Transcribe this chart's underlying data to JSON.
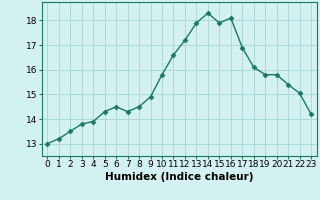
{
  "x": [
    0,
    1,
    2,
    3,
    4,
    5,
    6,
    7,
    8,
    9,
    10,
    11,
    12,
    13,
    14,
    15,
    16,
    17,
    18,
    19,
    20,
    21,
    22,
    23
  ],
  "y": [
    13.0,
    13.2,
    13.5,
    13.8,
    13.9,
    14.3,
    14.5,
    14.3,
    14.5,
    14.9,
    15.8,
    16.6,
    17.2,
    17.9,
    18.3,
    17.9,
    18.1,
    16.9,
    16.1,
    15.8,
    15.8,
    15.4,
    15.05,
    14.2
  ],
  "line_color": "#1a7a5e",
  "marker": "D",
  "marker_size": 2.5,
  "bg_color": "#d4f1f1",
  "grid_color": "#aed8d8",
  "xlabel": "Humidex (Indice chaleur)",
  "xlim": [
    -0.5,
    23.5
  ],
  "ylim": [
    12.5,
    18.75
  ],
  "yticks": [
    13,
    14,
    15,
    16,
    17,
    18
  ],
  "xticks": [
    0,
    1,
    2,
    3,
    4,
    5,
    6,
    7,
    8,
    9,
    10,
    11,
    12,
    13,
    14,
    15,
    16,
    17,
    18,
    19,
    20,
    21,
    22,
    23
  ],
  "xtick_labels": [
    "0",
    "1",
    "2",
    "3",
    "4",
    "5",
    "6",
    "7",
    "8",
    "9",
    "10",
    "11",
    "12",
    "13",
    "14",
    "15",
    "16",
    "17",
    "18",
    "19",
    "20",
    "21",
    "22",
    "23"
  ],
  "xlabel_fontsize": 7.5,
  "tick_fontsize": 6.5
}
